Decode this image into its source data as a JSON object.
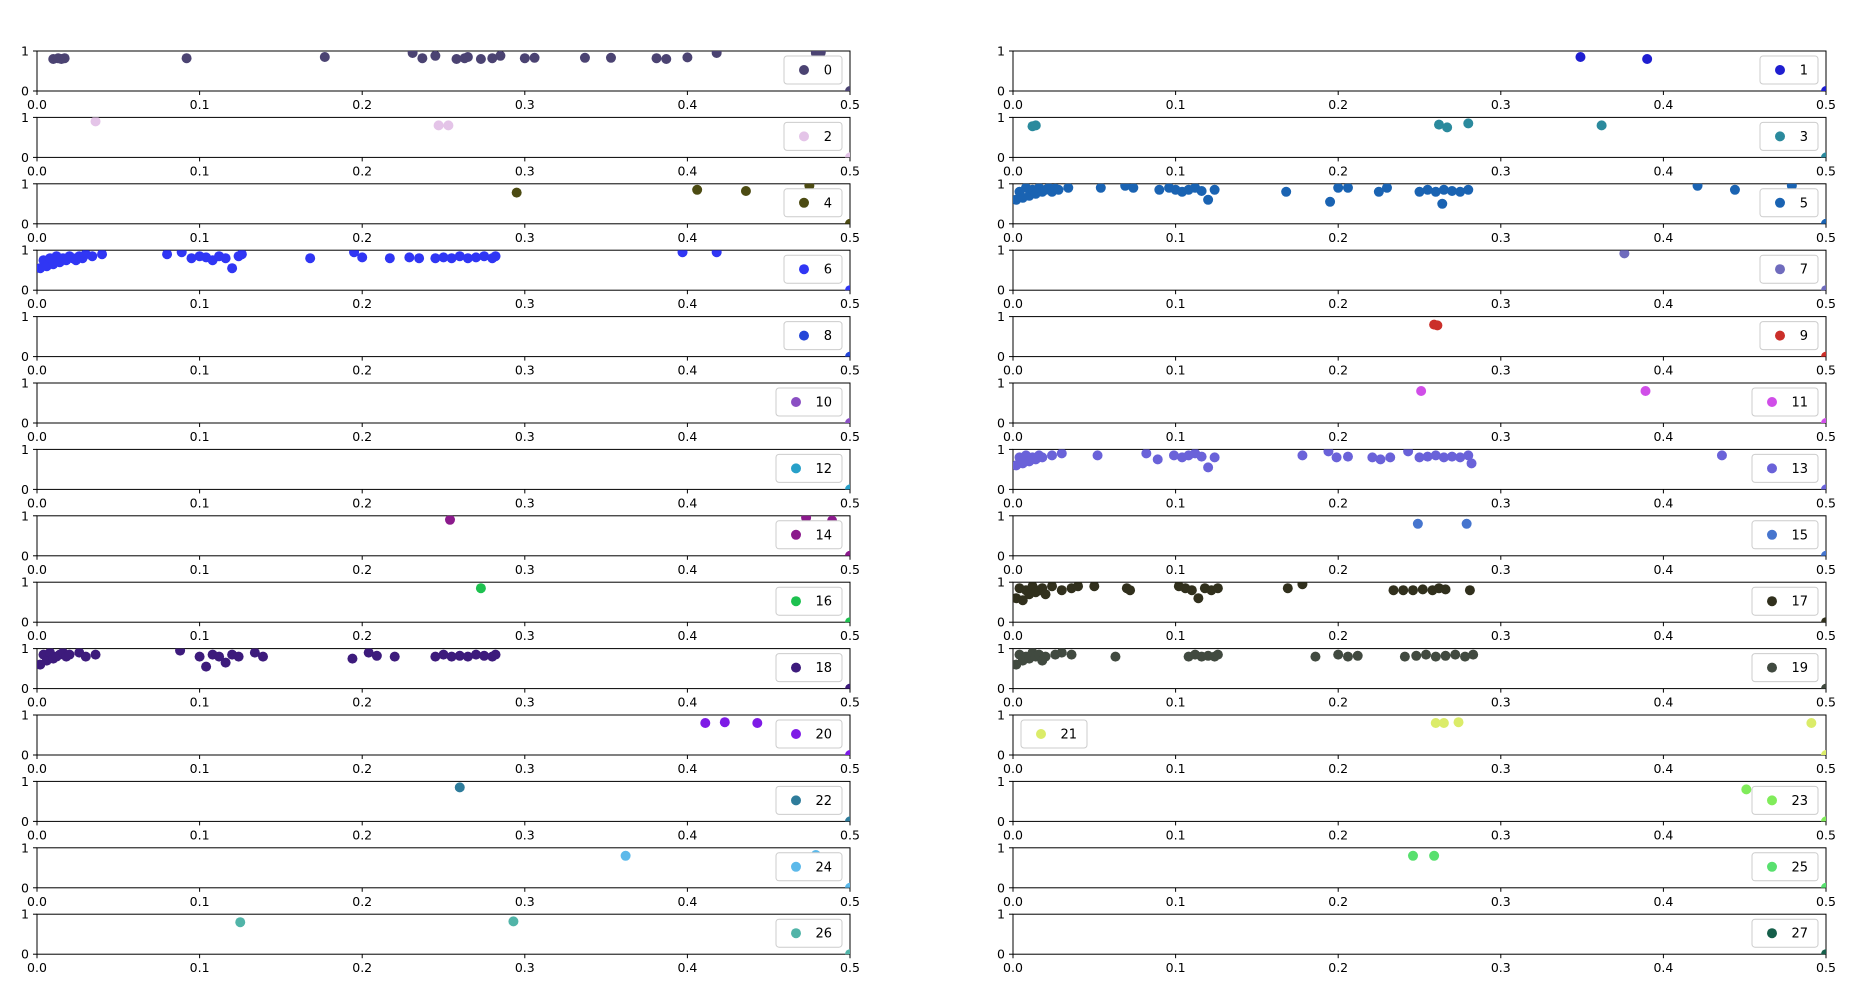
{
  "chart_data": {
    "type": "scatter",
    "layout": "small-multiples",
    "xlim": [
      0.0,
      0.5
    ],
    "ylim": [
      0,
      1
    ],
    "xticks": [
      0.0,
      0.1,
      0.2,
      0.3,
      0.4,
      0.5
    ],
    "xtick_labels": [
      "0.0",
      "0.1",
      "0.2",
      "0.3",
      "0.4",
      "0.5"
    ],
    "yticks": [
      0,
      1
    ],
    "ytick_labels": [
      "0",
      "1"
    ],
    "grid": false,
    "panels": [
      {
        "series": "0",
        "color": "#4b4372",
        "legend": "right",
        "x": [
          0.01,
          0.013,
          0.015,
          0.017,
          0.092,
          0.177,
          0.231,
          0.237,
          0.245,
          0.258,
          0.263,
          0.265,
          0.273,
          0.28,
          0.285,
          0.3,
          0.306,
          0.337,
          0.353,
          0.381,
          0.387,
          0.4,
          0.418,
          0.479,
          0.482,
          0.5
        ],
        "y": [
          0.8,
          0.82,
          0.8,
          0.82,
          0.82,
          0.85,
          0.95,
          0.82,
          0.88,
          0.8,
          0.82,
          0.85,
          0.8,
          0.82,
          0.88,
          0.82,
          0.83,
          0.83,
          0.83,
          0.82,
          0.8,
          0.84,
          0.95,
          0.95,
          0.96,
          0.0
        ]
      },
      {
        "series": "1",
        "color": "#1f1ed0",
        "legend": "right",
        "x": [
          0.349,
          0.39,
          0.5
        ],
        "y": [
          0.85,
          0.8,
          0.0
        ]
      },
      {
        "series": "2",
        "color": "#e4c4e8",
        "legend": "right",
        "x": [
          0.036,
          0.247,
          0.253,
          0.5
        ],
        "y": [
          0.9,
          0.8,
          0.8,
          0.0
        ]
      },
      {
        "series": "3",
        "color": "#2b8a9d",
        "legend": "right",
        "x": [
          0.012,
          0.014,
          0.262,
          0.267,
          0.28,
          0.362,
          0.5
        ],
        "y": [
          0.78,
          0.8,
          0.82,
          0.75,
          0.85,
          0.8,
          0.0
        ]
      },
      {
        "series": "4",
        "color": "#4c4b12",
        "legend": "right",
        "x": [
          0.295,
          0.406,
          0.436,
          0.475,
          0.5
        ],
        "y": [
          0.78,
          0.85,
          0.82,
          0.95,
          0.0
        ]
      },
      {
        "series": "5",
        "color": "#1a63b2",
        "legend": "right",
        "x": [
          0.002,
          0.004,
          0.006,
          0.008,
          0.01,
          0.012,
          0.014,
          0.016,
          0.018,
          0.02,
          0.022,
          0.024,
          0.026,
          0.028,
          0.034,
          0.054,
          0.069,
          0.074,
          0.09,
          0.096,
          0.1,
          0.104,
          0.108,
          0.112,
          0.116,
          0.12,
          0.124,
          0.168,
          0.195,
          0.2,
          0.206,
          0.225,
          0.23,
          0.25,
          0.255,
          0.26,
          0.265,
          0.27,
          0.275,
          0.28,
          0.264,
          0.421,
          0.444,
          0.479,
          0.5
        ],
        "y": [
          0.6,
          0.8,
          0.65,
          0.9,
          0.7,
          0.85,
          0.75,
          0.9,
          0.8,
          0.85,
          0.9,
          0.8,
          0.88,
          0.85,
          0.9,
          0.9,
          0.95,
          0.9,
          0.85,
          0.9,
          0.85,
          0.8,
          0.85,
          0.9,
          0.82,
          0.6,
          0.85,
          0.8,
          0.55,
          0.9,
          0.9,
          0.8,
          0.9,
          0.8,
          0.85,
          0.8,
          0.85,
          0.82,
          0.8,
          0.85,
          0.5,
          0.95,
          0.85,
          0.95,
          0.0
        ]
      },
      {
        "series": "6",
        "color": "#3036f4",
        "legend": "right",
        "x": [
          0.002,
          0.004,
          0.006,
          0.008,
          0.01,
          0.012,
          0.014,
          0.016,
          0.018,
          0.02,
          0.022,
          0.024,
          0.026,
          0.028,
          0.03,
          0.034,
          0.04,
          0.08,
          0.089,
          0.095,
          0.1,
          0.104,
          0.108,
          0.112,
          0.116,
          0.12,
          0.124,
          0.126,
          0.168,
          0.195,
          0.2,
          0.217,
          0.229,
          0.235,
          0.245,
          0.25,
          0.255,
          0.26,
          0.265,
          0.27,
          0.275,
          0.28,
          0.282,
          0.397,
          0.418,
          0.5
        ],
        "y": [
          0.55,
          0.75,
          0.6,
          0.8,
          0.65,
          0.85,
          0.7,
          0.8,
          0.75,
          0.85,
          0.8,
          0.75,
          0.85,
          0.8,
          0.9,
          0.85,
          0.9,
          0.9,
          0.95,
          0.8,
          0.85,
          0.82,
          0.75,
          0.85,
          0.8,
          0.55,
          0.85,
          0.9,
          0.8,
          0.95,
          0.82,
          0.8,
          0.82,
          0.8,
          0.8,
          0.82,
          0.8,
          0.85,
          0.8,
          0.82,
          0.85,
          0.8,
          0.85,
          0.95,
          0.95,
          0.0
        ]
      },
      {
        "series": "7",
        "color": "#6f6bbd",
        "legend": "right",
        "x": [
          0.376,
          0.5
        ],
        "y": [
          0.92,
          0.0
        ]
      },
      {
        "series": "8",
        "color": "#2446d8",
        "legend": "right",
        "x": [
          0.5
        ],
        "y": [
          0.0
        ]
      },
      {
        "series": "9",
        "color": "#cb2f2a",
        "legend": "right",
        "x": [
          0.259,
          0.261,
          0.5
        ],
        "y": [
          0.8,
          0.78,
          0.0
        ]
      },
      {
        "series": "10",
        "color": "#8a4fc3",
        "legend": "right",
        "x": [
          0.5
        ],
        "y": [
          0.0
        ]
      },
      {
        "series": "11",
        "color": "#d04ee8",
        "legend": "right",
        "x": [
          0.251,
          0.389,
          0.5
        ],
        "y": [
          0.8,
          0.8,
          0.0
        ]
      },
      {
        "series": "12",
        "color": "#27a0c9",
        "legend": "right",
        "x": [
          0.5
        ],
        "y": [
          0.0
        ]
      },
      {
        "series": "13",
        "color": "#6a62d9",
        "legend": "right",
        "x": [
          0.002,
          0.004,
          0.006,
          0.008,
          0.01,
          0.012,
          0.014,
          0.016,
          0.018,
          0.024,
          0.03,
          0.052,
          0.082,
          0.089,
          0.099,
          0.104,
          0.108,
          0.112,
          0.116,
          0.12,
          0.124,
          0.178,
          0.194,
          0.199,
          0.206,
          0.221,
          0.226,
          0.232,
          0.243,
          0.25,
          0.255,
          0.26,
          0.265,
          0.27,
          0.275,
          0.28,
          0.282,
          0.436,
          0.5
        ],
        "y": [
          0.6,
          0.8,
          0.65,
          0.85,
          0.7,
          0.8,
          0.75,
          0.85,
          0.8,
          0.85,
          0.9,
          0.85,
          0.9,
          0.75,
          0.85,
          0.8,
          0.85,
          0.9,
          0.82,
          0.55,
          0.8,
          0.85,
          0.95,
          0.8,
          0.82,
          0.8,
          0.75,
          0.8,
          0.95,
          0.8,
          0.82,
          0.85,
          0.8,
          0.82,
          0.8,
          0.85,
          0.65,
          0.85,
          0.0
        ]
      },
      {
        "series": "14",
        "color": "#8b1a8c",
        "legend": "right",
        "x": [
          0.254,
          0.473,
          0.489,
          0.5
        ],
        "y": [
          0.9,
          0.95,
          0.88,
          0.0
        ]
      },
      {
        "series": "15",
        "color": "#4675ce",
        "legend": "right",
        "x": [
          0.249,
          0.279,
          0.5
        ],
        "y": [
          0.8,
          0.8,
          0.0
        ]
      },
      {
        "series": "16",
        "color": "#1dc14f",
        "legend": "right",
        "x": [
          0.273,
          0.5
        ],
        "y": [
          0.85,
          0.0
        ]
      },
      {
        "series": "17",
        "color": "#31301d",
        "legend": "right",
        "x": [
          0.002,
          0.004,
          0.006,
          0.008,
          0.01,
          0.012,
          0.014,
          0.016,
          0.018,
          0.02,
          0.024,
          0.03,
          0.036,
          0.04,
          0.05,
          0.07,
          0.072,
          0.102,
          0.106,
          0.11,
          0.114,
          0.118,
          0.122,
          0.126,
          0.169,
          0.178,
          0.234,
          0.24,
          0.246,
          0.252,
          0.258,
          0.262,
          0.266,
          0.281,
          0.5
        ],
        "y": [
          0.6,
          0.85,
          0.55,
          0.8,
          0.7,
          0.9,
          0.75,
          0.8,
          0.85,
          0.7,
          0.9,
          0.8,
          0.85,
          0.9,
          0.9,
          0.85,
          0.8,
          0.9,
          0.85,
          0.8,
          0.6,
          0.85,
          0.8,
          0.85,
          0.85,
          0.95,
          0.8,
          0.8,
          0.8,
          0.82,
          0.8,
          0.85,
          0.82,
          0.8,
          0.0
        ]
      },
      {
        "series": "18",
        "color": "#3d1b7c",
        "legend": "right",
        "x": [
          0.002,
          0.004,
          0.006,
          0.008,
          0.01,
          0.012,
          0.014,
          0.016,
          0.018,
          0.02,
          0.026,
          0.03,
          0.036,
          0.088,
          0.1,
          0.104,
          0.108,
          0.112,
          0.116,
          0.12,
          0.124,
          0.134,
          0.139,
          0.194,
          0.204,
          0.209,
          0.22,
          0.245,
          0.25,
          0.255,
          0.26,
          0.265,
          0.27,
          0.275,
          0.28,
          0.282,
          0.5
        ],
        "y": [
          0.6,
          0.85,
          0.7,
          0.9,
          0.75,
          0.8,
          0.85,
          0.9,
          0.8,
          0.85,
          0.9,
          0.8,
          0.85,
          0.95,
          0.8,
          0.55,
          0.85,
          0.8,
          0.65,
          0.85,
          0.8,
          0.9,
          0.8,
          0.75,
          0.9,
          0.82,
          0.8,
          0.8,
          0.85,
          0.8,
          0.82,
          0.8,
          0.85,
          0.82,
          0.8,
          0.85,
          0.0
        ]
      },
      {
        "series": "19",
        "color": "#414a40",
        "legend": "right",
        "x": [
          0.002,
          0.004,
          0.006,
          0.008,
          0.01,
          0.012,
          0.014,
          0.016,
          0.018,
          0.02,
          0.026,
          0.03,
          0.036,
          0.063,
          0.108,
          0.112,
          0.116,
          0.12,
          0.124,
          0.126,
          0.186,
          0.2,
          0.206,
          0.212,
          0.241,
          0.248,
          0.254,
          0.26,
          0.266,
          0.272,
          0.278,
          0.283,
          0.5
        ],
        "y": [
          0.6,
          0.85,
          0.7,
          0.8,
          0.75,
          0.9,
          0.8,
          0.85,
          0.7,
          0.8,
          0.85,
          0.9,
          0.85,
          0.8,
          0.8,
          0.85,
          0.8,
          0.82,
          0.8,
          0.85,
          0.8,
          0.85,
          0.8,
          0.82,
          0.8,
          0.82,
          0.85,
          0.8,
          0.82,
          0.85,
          0.8,
          0.85,
          0.0
        ]
      },
      {
        "series": "20",
        "color": "#7e1be6",
        "legend": "right",
        "x": [
          0.411,
          0.423,
          0.443,
          0.5
        ],
        "y": [
          0.8,
          0.82,
          0.8,
          0.0
        ]
      },
      {
        "series": "21",
        "color": "#dbec69",
        "legend": "left",
        "x": [
          0.26,
          0.265,
          0.274,
          0.491,
          0.5
        ],
        "y": [
          0.8,
          0.8,
          0.82,
          0.8,
          0.0
        ]
      },
      {
        "series": "22",
        "color": "#2e7c9b",
        "legend": "right",
        "x": [
          0.26,
          0.5
        ],
        "y": [
          0.85,
          0.0
        ]
      },
      {
        "series": "23",
        "color": "#80ec5a",
        "legend": "right",
        "x": [
          0.451,
          0.5
        ],
        "y": [
          0.8,
          0.0
        ]
      },
      {
        "series": "24",
        "color": "#5cb9ea",
        "legend": "right",
        "x": [
          0.362,
          0.479,
          0.5
        ],
        "y": [
          0.8,
          0.82,
          0.0
        ]
      },
      {
        "series": "25",
        "color": "#58e06e",
        "legend": "right",
        "x": [
          0.246,
          0.259,
          0.5
        ],
        "y": [
          0.8,
          0.8,
          0.0
        ]
      },
      {
        "series": "26",
        "color": "#51b4a8",
        "legend": "right",
        "x": [
          0.125,
          0.293,
          0.5
        ],
        "y": [
          0.8,
          0.82,
          0.0
        ]
      },
      {
        "series": "27",
        "color": "#155f4a",
        "legend": "right",
        "x": [
          0.5
        ],
        "y": [
          0.0
        ]
      }
    ]
  }
}
